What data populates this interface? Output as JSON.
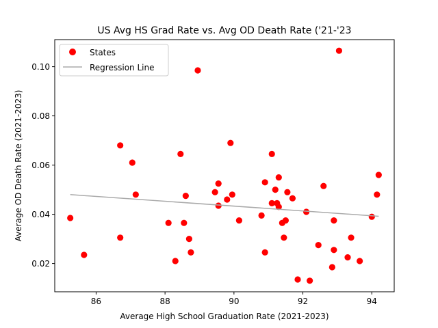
{
  "chart_data": {
    "type": "scatter",
    "title": "US Avg HS Grad Rate vs. Avg OD Death Rate ('21-'23",
    "xlabel": "Average High School Graduation Rate (2021-2023)",
    "ylabel": "Average OD Death Rate (2021-2023)",
    "xlim": [
      84.8,
      94.65
    ],
    "ylim": [
      0.0085,
      0.111
    ],
    "xticks": [
      86,
      88,
      90,
      92,
      94
    ],
    "yticks": [
      0.02,
      0.04,
      0.06,
      0.08,
      0.1
    ],
    "xtick_labels": [
      "86",
      "88",
      "90",
      "92",
      "94"
    ],
    "ytick_labels": [
      "0.02",
      "0.04",
      "0.06",
      "0.08",
      "0.10"
    ],
    "grid": false,
    "legend_position": "top-left",
    "series": [
      {
        "name": "States",
        "kind": "scatter",
        "color": "#ff0000",
        "points": [
          [
            85.25,
            0.0385
          ],
          [
            85.65,
            0.0235
          ],
          [
            86.7,
            0.068
          ],
          [
            86.7,
            0.0305
          ],
          [
            87.05,
            0.061
          ],
          [
            87.15,
            0.048
          ],
          [
            88.1,
            0.0365
          ],
          [
            88.3,
            0.021
          ],
          [
            88.45,
            0.0645
          ],
          [
            88.55,
            0.0365
          ],
          [
            88.6,
            0.0475
          ],
          [
            88.7,
            0.03
          ],
          [
            88.75,
            0.0245
          ],
          [
            88.95,
            0.0985
          ],
          [
            89.45,
            0.049
          ],
          [
            89.55,
            0.0525
          ],
          [
            89.55,
            0.0435
          ],
          [
            89.8,
            0.046
          ],
          [
            89.9,
            0.069
          ],
          [
            89.95,
            0.048
          ],
          [
            90.15,
            0.0375
          ],
          [
            90.8,
            0.0395
          ],
          [
            90.9,
            0.053
          ],
          [
            90.9,
            0.0245
          ],
          [
            91.1,
            0.0445
          ],
          [
            91.1,
            0.0645
          ],
          [
            91.2,
            0.05
          ],
          [
            91.25,
            0.0445
          ],
          [
            91.3,
            0.043
          ],
          [
            91.3,
            0.055
          ],
          [
            91.4,
            0.0365
          ],
          [
            91.45,
            0.0305
          ],
          [
            91.5,
            0.0375
          ],
          [
            91.55,
            0.049
          ],
          [
            91.7,
            0.0465
          ],
          [
            91.85,
            0.0135
          ],
          [
            92.1,
            0.041
          ],
          [
            92.2,
            0.013
          ],
          [
            92.45,
            0.0275
          ],
          [
            92.6,
            0.0515
          ],
          [
            92.85,
            0.0185
          ],
          [
            92.9,
            0.0375
          ],
          [
            92.9,
            0.0255
          ],
          [
            93.05,
            0.1065
          ],
          [
            93.3,
            0.0225
          ],
          [
            93.4,
            0.0305
          ],
          [
            93.65,
            0.021
          ],
          [
            94.0,
            0.039
          ],
          [
            94.15,
            0.048
          ],
          [
            94.2,
            0.056
          ]
        ]
      },
      {
        "name": "Regression Line",
        "kind": "line",
        "color": "#aaaaaa",
        "points": [
          [
            85.25,
            0.048
          ],
          [
            94.2,
            0.0392
          ]
        ]
      }
    ]
  }
}
